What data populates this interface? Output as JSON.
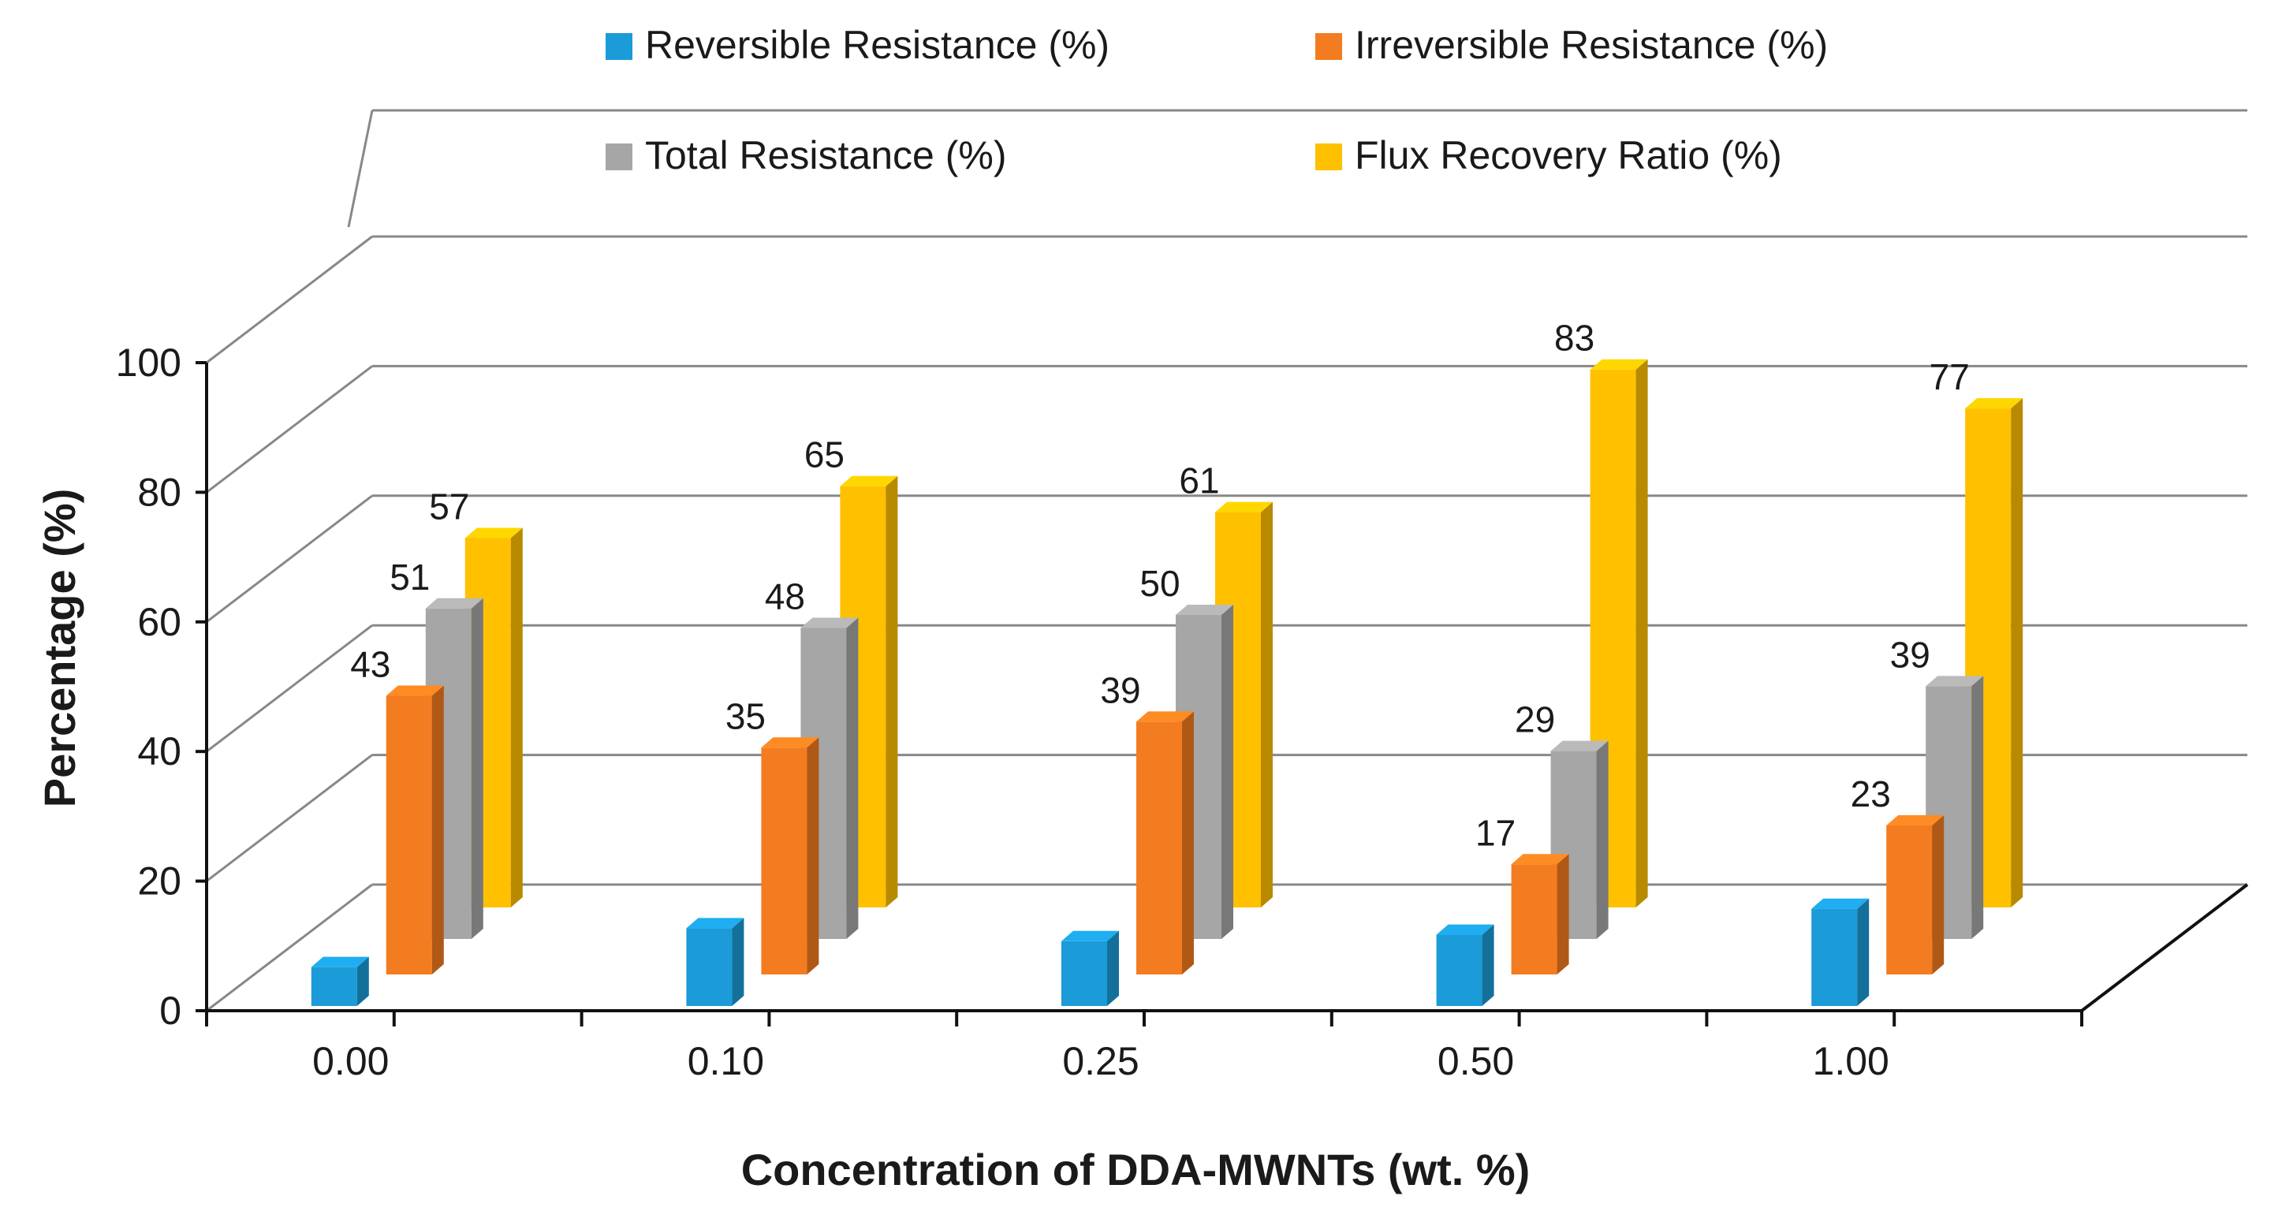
{
  "chart_data": {
    "type": "bar",
    "style": "3d-clustered",
    "categories": [
      "0.00",
      "0.10",
      "0.25",
      "0.50",
      "1.00"
    ],
    "series": [
      {
        "name": "Reversible Resistance (%)",
        "values": [
          6,
          12,
          10,
          11,
          15
        ],
        "labels": [
          "",
          "",
          "",
          "",
          ""
        ],
        "color": "#1b9bd7"
      },
      {
        "name": "Irreversible Resistance (%)",
        "values": [
          43,
          35,
          39,
          17,
          23
        ],
        "labels": [
          "43",
          "35",
          "39",
          "17",
          "23"
        ],
        "color": "#f47c20"
      },
      {
        "name": "Total Resistance (%)",
        "values": [
          51,
          48,
          50,
          29,
          39
        ],
        "labels": [
          "51",
          "48",
          "50",
          "29",
          "39"
        ],
        "color": "#a6a6a6"
      },
      {
        "name": "Flux Recovery Ratio (%)",
        "values": [
          57,
          65,
          61,
          83,
          77
        ],
        "labels": [
          "57",
          "65",
          "61",
          "83",
          "77"
        ],
        "color": "#ffc000"
      }
    ],
    "xlabel": "Concentration of DDA-MWNTs (wt. %)",
    "ylabel": "Percentage (%)",
    "ylim": [
      0,
      100
    ],
    "yticks": [
      "0",
      "20",
      "40",
      "60",
      "80",
      "100"
    ],
    "grid": true,
    "legend": "top"
  }
}
